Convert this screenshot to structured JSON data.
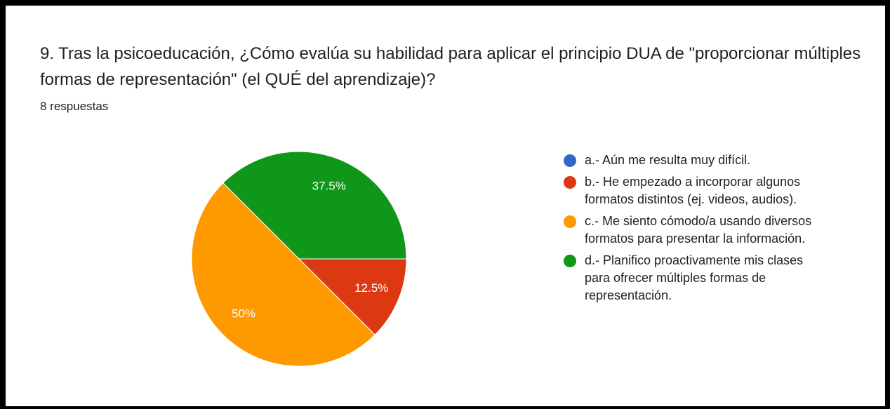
{
  "chart_data": {
    "type": "pie",
    "title": "9. Tras la psicoeducación, ¿Cómo evalúa su habilidad para aplicar el principio DUA de \"proporcionar múltiples formas de representación\" (el QUÉ del aprendizaje)?",
    "subtitle": "8 respuestas",
    "categories": [
      "a.- Aún me resulta muy difícil.",
      "b.- He empezado a incorporar algunos formatos distintos (ej. videos, audios).",
      "c.- Me siento cómodo/a usando diversos formatos para presentar la información.",
      "d.- Planifico proactivamente mis clases para ofrecer múltiples formas de representación."
    ],
    "values": [
      0,
      12.5,
      50,
      37.5
    ],
    "value_labels": [
      null,
      "12.5%",
      "50%",
      "37.5%"
    ],
    "colors": [
      "#3366cc",
      "#dc3912",
      "#ff9900",
      "#109618"
    ],
    "legend": "right"
  }
}
